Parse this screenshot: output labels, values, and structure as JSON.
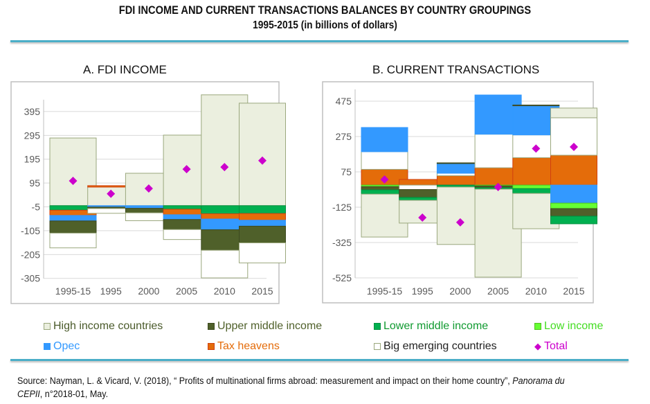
{
  "header": {
    "title": "FDI INCOME AND CURRENT TRANSACTIONS BALANCES BY COUNTRY GROUPINGS",
    "subtitle": "1995-2015 (in billions of dollars)"
  },
  "series_styles": {
    "high": {
      "label": "High income countries",
      "fill": "#ebefdf",
      "stroke": "#9aa77c",
      "text": "#4a5a2a"
    },
    "upper": {
      "label": "Upper middle income",
      "fill": "#4f602a",
      "stroke": "#3d4a20",
      "text": "#4f602a"
    },
    "lower": {
      "label": "Lower middle income",
      "fill": "#00b050",
      "stroke": "#00903f",
      "text": "#109a30"
    },
    "low": {
      "label": "Low income",
      "fill": "#66ff33",
      "stroke": "#50c020",
      "text": "#44dd22"
    },
    "opec": {
      "label": "Opec",
      "fill": "#3399ff",
      "stroke": "#3399ff",
      "text": "#3399ff"
    },
    "tax": {
      "label": "Tax heavens",
      "fill": "#e46c0a",
      "stroke": "#d04010",
      "text": "#e46c0a"
    },
    "big": {
      "label": "Big emerging countries",
      "fill": "#ffffff",
      "stroke": "#9aa77c",
      "text": "#222222"
    },
    "total": {
      "label": "Total",
      "fill": "#cc00cc",
      "stroke": "#cc00cc",
      "text": "#cc00cc"
    }
  },
  "legend_order": [
    [
      "high",
      "upper",
      "lower",
      "low"
    ],
    [
      "opec",
      "tax",
      "big",
      "total"
    ]
  ],
  "chart_data": [
    {
      "type": "bar",
      "stacked": true,
      "title": "A. FDI INCOME",
      "categories": [
        "1995-15",
        "1995",
        "2000",
        "2005",
        "2010",
        "2015"
      ],
      "ylim": [
        -305,
        495
      ],
      "yticks": [
        395,
        295,
        195,
        95,
        -5,
        -105,
        -205,
        -305
      ],
      "grid": true,
      "pos_order": [
        "high",
        "tax"
      ],
      "neg_order": [
        "lower",
        "tax",
        "opec",
        "upper",
        "big"
      ],
      "series": [
        {
          "key": "high",
          "name": "High income countries",
          "values": [
            284,
            78,
            136,
            296,
            465,
            430
          ]
        },
        {
          "key": "upper",
          "name": "Upper middle income",
          "values": [
            -51,
            -6,
            -19,
            -42,
            -86,
            -70
          ]
        },
        {
          "key": "lower",
          "name": "Lower middle income",
          "values": [
            -19,
            0,
            0,
            -15,
            -34,
            -33
          ]
        },
        {
          "key": "low",
          "name": "Low income",
          "values": [
            0,
            0,
            0,
            0,
            0,
            0
          ]
        },
        {
          "key": "opec",
          "name": "Opec",
          "values": [
            -23,
            -6,
            -11,
            -20,
            -45,
            -25
          ]
        },
        {
          "key": "tax",
          "name": "Tax heavens",
          "values": [
            -22,
            6,
            0,
            -23,
            -22,
            -28
          ]
        },
        {
          "key": "big",
          "name": "Big emerging countries",
          "values": [
            -62,
            -20,
            -33,
            -42,
            -116,
            -84
          ]
        }
      ],
      "total": {
        "name": "Total",
        "values": [
          104,
          50,
          72,
          153,
          162,
          189
        ]
      }
    },
    {
      "type": "bar",
      "stacked": true,
      "title": "B. CURRENT TRANSACTIONS",
      "categories": [
        "1995-15",
        "1995",
        "2000",
        "2005",
        "2010",
        "2015"
      ],
      "ylim": [
        -525,
        525
      ],
      "yticks": [
        475,
        275,
        75,
        -125,
        -325,
        -525
      ],
      "grid": true,
      "pos_order": [
        "tax",
        "big",
        "opec",
        "upper",
        "high"
      ],
      "neg_order": [
        "big",
        "opec",
        "low",
        "upper",
        "lower",
        "high"
      ],
      "series": [
        {
          "key": "high",
          "name": "High income countries",
          "values": [
            -243,
            -129,
            -325,
            -498,
            -200,
            55
          ]
        },
        {
          "key": "upper",
          "name": "Upper middle income",
          "values": [
            -18,
            -45,
            4,
            -10,
            4,
            -43
          ]
        },
        {
          "key": "lower",
          "name": "Lower middle income",
          "values": [
            -24,
            -16,
            -11,
            -8,
            -27,
            -43
          ]
        },
        {
          "key": "low",
          "name": "Low income",
          "values": [
            -9,
            0,
            0,
            -5,
            -20,
            -31
          ]
        },
        {
          "key": "opec",
          "name": "Opec",
          "values": [
            137,
            0,
            55,
            222,
            165,
            -102
          ]
        },
        {
          "key": "tax",
          "name": "Tax heavens",
          "values": [
            89,
            32,
            53,
            98,
            155,
            169
          ]
        },
        {
          "key": "big",
          "name": "Big emerging countries",
          "values": [
            100,
            -25,
            14,
            190,
            129,
            212
          ]
        }
      ],
      "total": {
        "name": "Total",
        "values": [
          32,
          -184,
          -211,
          -11,
          207,
          216
        ]
      }
    }
  ],
  "source": {
    "prefix": "Source: Nayman, L. & Vicard, V. (2018), “ Profits of multinational firms abroad: measurement and impact on their home country”, ",
    "italic1": "Panorama du CEPII",
    "suffix": ", n°2018-01, May."
  }
}
